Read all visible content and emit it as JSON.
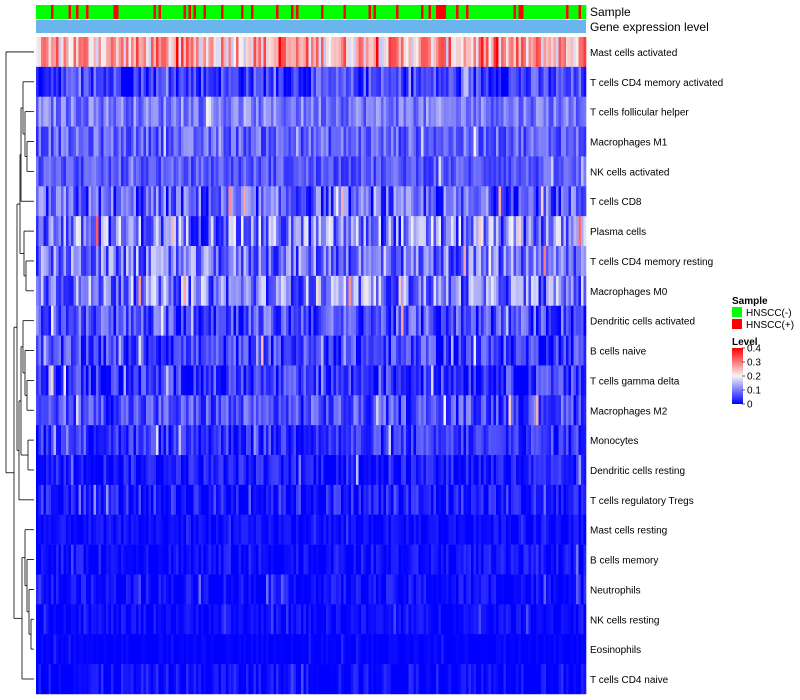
{
  "chart_data": {
    "type": "heatmap",
    "title": "",
    "annotation_labels": [
      "Sample",
      "Gene expression level"
    ],
    "rows": [
      {
        "name": "Mast cells activated",
        "mean": 0.26,
        "spread": 0.1
      },
      {
        "name": "T cells CD4 memory activated",
        "mean": 0.05,
        "spread": 0.06
      },
      {
        "name": "T cells follicular helper",
        "mean": 0.1,
        "spread": 0.05
      },
      {
        "name": "Macrophages M1",
        "mean": 0.08,
        "spread": 0.05
      },
      {
        "name": "NK cells activated",
        "mean": 0.07,
        "spread": 0.04
      },
      {
        "name": "T cells CD8",
        "mean": 0.07,
        "spread": 0.08
      },
      {
        "name": "Plasma cells",
        "mean": 0.1,
        "spread": 0.1
      },
      {
        "name": "T cells CD4 memory resting",
        "mean": 0.09,
        "spread": 0.08
      },
      {
        "name": "Macrophages M0",
        "mean": 0.1,
        "spread": 0.09
      },
      {
        "name": "Dendritic cells activated",
        "mean": 0.06,
        "spread": 0.07
      },
      {
        "name": "B cells naive",
        "mean": 0.05,
        "spread": 0.06
      },
      {
        "name": "T cells gamma delta",
        "mean": 0.04,
        "spread": 0.06
      },
      {
        "name": "Macrophages M2",
        "mean": 0.06,
        "spread": 0.06
      },
      {
        "name": "Monocytes",
        "mean": 0.04,
        "spread": 0.05
      },
      {
        "name": "Dendritic cells resting",
        "mean": 0.02,
        "spread": 0.04
      },
      {
        "name": "T cells regulatory  Tregs",
        "mean": 0.02,
        "spread": 0.05
      },
      {
        "name": "Mast cells resting",
        "mean": 0.01,
        "spread": 0.02
      },
      {
        "name": "B cells memory",
        "mean": 0.01,
        "spread": 0.03
      },
      {
        "name": "Neutrophils",
        "mean": 0.01,
        "spread": 0.03
      },
      {
        "name": "NK cells resting",
        "mean": 0.01,
        "spread": 0.02
      },
      {
        "name": "Eosinophils",
        "mean": 0.0,
        "spread": 0.01
      },
      {
        "name": "T cells CD4 naive",
        "mean": 0.01,
        "spread": 0.03
      }
    ],
    "n_samples": 220,
    "color_scale": {
      "stops": [
        {
          "value": 0.0,
          "color": "#0000ff"
        },
        {
          "value": 0.2,
          "color": "#f5f5f5"
        },
        {
          "value": 0.4,
          "color": "#ff0000"
        }
      ]
    },
    "legend": {
      "sample_title": "Sample",
      "sample_items": [
        {
          "label": "HNSCC(-)",
          "color": "#00ff00"
        },
        {
          "label": "HNSCC(+)",
          "color": "#ff0000"
        }
      ],
      "level_title": "Level",
      "level_ticks": [
        "0.4",
        "0.3",
        "0.2",
        "0.1",
        "0"
      ],
      "level_tick_values": [
        0.4,
        0.3,
        0.2,
        0.1,
        0.0
      ]
    },
    "sample_positive_fraction": 0.22,
    "expression_bar_color": "#6cb4ee"
  }
}
